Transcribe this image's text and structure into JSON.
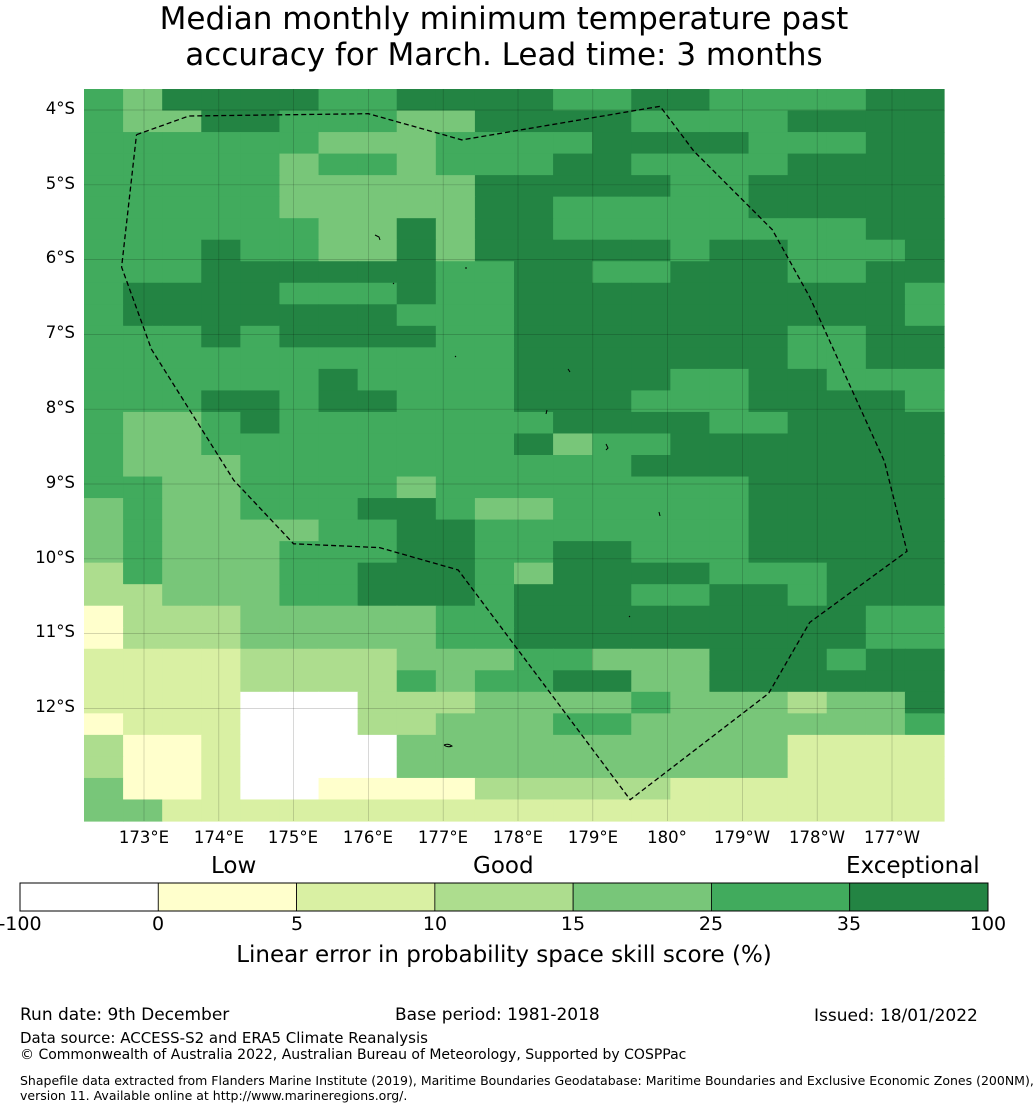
{
  "title_line1": "Median monthly minimum temperature past",
  "title_line2": "accuracy for March. Lead time: 3 months",
  "map": {
    "lat_labels": [
      "4°S",
      "5°S",
      "6°S",
      "7°S",
      "8°S",
      "9°S",
      "10°S",
      "11°S",
      "12°S"
    ],
    "lon_labels": [
      "173°E",
      "174°E",
      "175°E",
      "176°E",
      "177°E",
      "178°E",
      "179°E",
      "180°",
      "179°W",
      "178°W",
      "177°W"
    ],
    "palette": [
      "#ffffff",
      "#ffffcc",
      "#d9f0a3",
      "#addd8e",
      "#78c679",
      "#41ab5d",
      "#238443"
    ],
    "grid": [
      "5466665566665566555566",
      "5446655544666655556666",
      "5555554445555666655566",
      "5555545545556655556666",
      "5555544444666665566666",
      "5555544444665555566666",
      "5555554464665555555566",
      "5556554464666665665556",
      "5556666665566556665566",
      "5666655565566666666665",
      "5666666655566666666665",
      "5556566665566666665566",
      "5555555555566666665566",
      "5555556555566665566555",
      "5556656655566655566665",
      "5445655555556666556666",
      "5445555555564556666666",
      "5444555555555566666666",
      "5544555545555555566666",
      "4544555665445555566666",
      "4544445566555555566666",
      "4544455566556655566666",
      "3544455666546666555666",
      "3344455666566655665666",
      "1333444445566666666655",
      "1333444445566666666655",
      "2222333344455444666566",
      "2222333354556644666666",
      "2222000333444454443446",
      "1222000334445544444445",
      "3112000044444444442222",
      "3112000044444444442222",
      "4112001111333332222222",
      "4422222222222222222222"
    ],
    "boundary_path": [
      [
        4.33,
        172.9
      ],
      [
        4.08,
        173.6
      ],
      [
        4.05,
        176
      ],
      [
        4.4,
        177.25
      ],
      [
        3.95,
        179.9
      ],
      [
        4.55,
        180.35
      ],
      [
        5.6,
        181.4
      ],
      [
        6.5,
        181.9
      ],
      [
        8.7,
        182.9
      ],
      [
        9.9,
        183.2
      ],
      [
        10.85,
        181.9
      ],
      [
        11.8,
        181.35
      ],
      [
        13.22,
        179.5
      ],
      [
        10.15,
        177.2
      ],
      [
        9.85,
        176.15
      ],
      [
        9.8,
        175
      ],
      [
        8.95,
        174.2
      ],
      [
        7.2,
        173.1
      ],
      [
        6.1,
        172.7
      ],
      [
        4.33,
        172.9
      ]
    ]
  },
  "legend": {
    "categories": [
      "Low",
      "Good",
      "Exceptional"
    ],
    "ticks": [
      "-100",
      "0",
      "5",
      "10",
      "15",
      "25",
      "35",
      "100"
    ],
    "colors": [
      "#ffffff",
      "#ffffcc",
      "#d9f0a3",
      "#addd8e",
      "#78c679",
      "#41ab5d",
      "#238443"
    ],
    "label": "Linear error in probability space skill score (%)"
  },
  "footer": {
    "run_date": "Run date: 9th December",
    "base_period": "Base period: 1981-2018",
    "issued": "Issued: 18/01/2022",
    "data_source": "Data source: ACCESS-S2 and ERA5 Climate Reanalysis",
    "copyright": "© Commonwealth of Australia 2022, Australian Bureau of Meteorology, Supported by COSPPac",
    "shapefile_line1": "Shapefile data extracted from Flanders Marine Institute (2019), Maritime Boundaries Geodatabase: Maritime Boundaries and Exclusive Economic Zones (200NM),",
    "shapefile_line2": "version 11. Available online at http://www.marineregions.org/."
  }
}
